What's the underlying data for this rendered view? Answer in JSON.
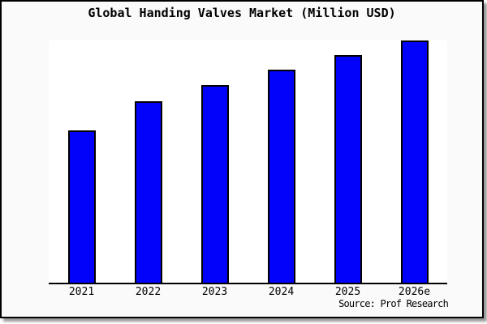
{
  "frame": {
    "background_color": "#fafafa",
    "plot_background_color": "#ffffff",
    "border_color": "#000000"
  },
  "chart_data": {
    "type": "bar",
    "title": "Global Handing Valves Market (Million USD)",
    "categories": [
      "2021",
      "2022",
      "2023",
      "2024",
      "2025",
      "2026e"
    ],
    "values": [
      63,
      75,
      81.5,
      88,
      94,
      100
    ],
    "value_scale": "relative height, tallest bar (2026e) = 100; no y-axis tick labels shown in chart",
    "xlabel": "",
    "ylabel": "",
    "ylim": [
      0,
      100
    ],
    "grid": false,
    "legend": false,
    "bar_color": "#0202fa",
    "bar_border_color": "#000000",
    "axis_color": "#000000",
    "source": "Source: Prof Research"
  }
}
